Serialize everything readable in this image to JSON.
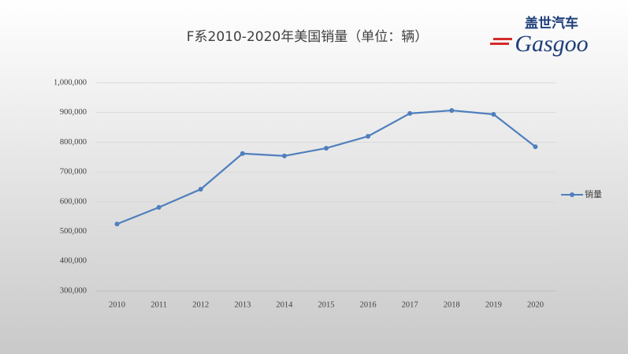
{
  "logo": {
    "name": "盖世汽车",
    "brand": "Gasgoo"
  },
  "chart_data": {
    "type": "line",
    "title": "F系2010-2020年美国销量（单位：辆）",
    "categories": [
      "2010",
      "2011",
      "2012",
      "2013",
      "2014",
      "2015",
      "2016",
      "2017",
      "2018",
      "2019",
      "2020"
    ],
    "series": [
      {
        "name": "销量",
        "color": "#4f7fbd",
        "values": [
          525000,
          581000,
          642000,
          762000,
          754000,
          780000,
          820000,
          897000,
          907000,
          894000,
          785000
        ]
      }
    ],
    "ylim": [
      300000,
      1000000
    ],
    "yticks": [
      {
        "value": 300000,
        "label": "300,000"
      },
      {
        "value": 400000,
        "label": "400,000"
      },
      {
        "value": 500000,
        "label": "500,000"
      },
      {
        "value": 600000,
        "label": "600,000"
      },
      {
        "value": 700000,
        "label": "700,000"
      },
      {
        "value": 800000,
        "label": "800,000"
      },
      {
        "value": 900000,
        "label": "900,000"
      },
      {
        "value": 1000000,
        "label": "1,000,000"
      }
    ],
    "grid": true,
    "legend": "right"
  }
}
